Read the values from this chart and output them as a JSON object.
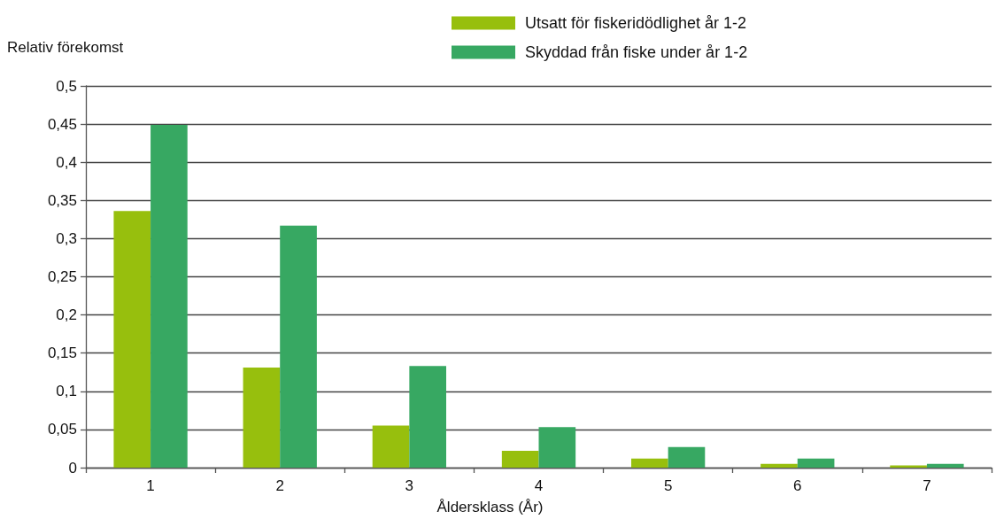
{
  "chart_data": {
    "type": "bar",
    "ylabel": "Relativ förekomst",
    "xlabel": "Åldersklass (År)",
    "categories": [
      "1",
      "2",
      "3",
      "4",
      "5",
      "6",
      "7"
    ],
    "series": [
      {
        "name": "Utsatt för fiskeridödlighet år 1-2",
        "color": "#97bf0d",
        "values": [
          0.336,
          0.131,
          0.055,
          0.022,
          0.012,
          0.005,
          0.003
        ]
      },
      {
        "name": "Skyddad från fiske under år 1-2",
        "color": "#37a862",
        "values": [
          0.449,
          0.317,
          0.133,
          0.053,
          0.027,
          0.012,
          0.005
        ]
      }
    ],
    "ylim": [
      0,
      0.5
    ],
    "yticks": [
      {
        "value": 0,
        "label": "0"
      },
      {
        "value": 0.05,
        "label": "0,05"
      },
      {
        "value": 0.1,
        "label": "0,1"
      },
      {
        "value": 0.15,
        "label": "0,15"
      },
      {
        "value": 0.2,
        "label": "0,2"
      },
      {
        "value": 0.25,
        "label": "0,25"
      },
      {
        "value": 0.3,
        "label": "0,3"
      },
      {
        "value": 0.35,
        "label": "0,35"
      },
      {
        "value": 0.4,
        "label": "0,4"
      },
      {
        "value": 0.45,
        "label": "0,45"
      },
      {
        "value": 0.5,
        "label": "0,5"
      }
    ],
    "grid": "y",
    "legend": "top"
  }
}
